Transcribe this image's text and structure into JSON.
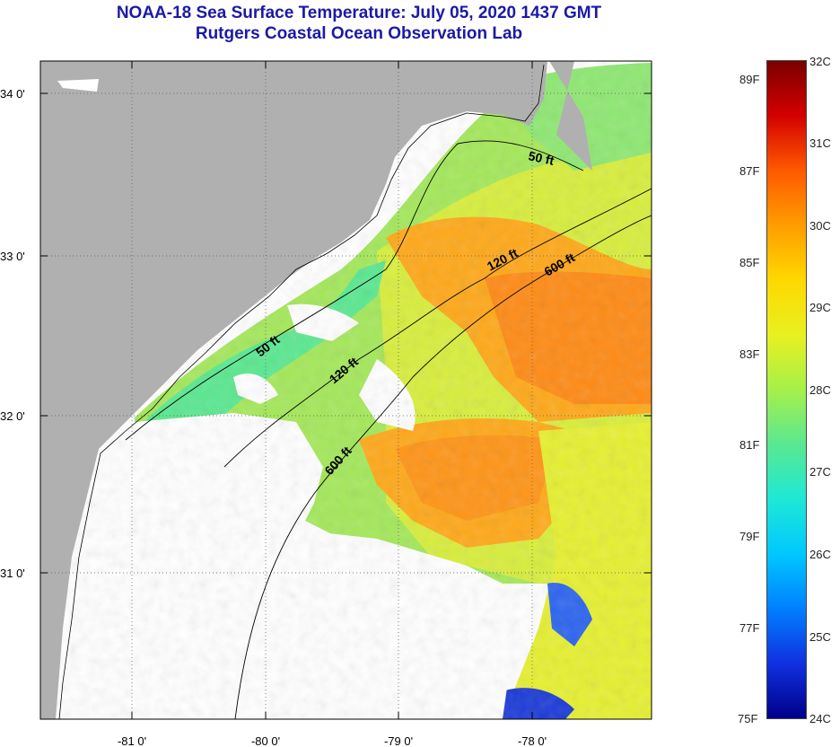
{
  "header": {
    "title": "NOAA-18 Sea Surface Temperature:  July 05, 2020 1437 GMT",
    "subtitle": "Rutgers Coastal Ocean Observation Lab"
  },
  "map": {
    "lat_ticks": [
      "34 0'",
      "33 0'",
      "32 0'",
      "31 0'"
    ],
    "lon_ticks": [
      "-81 0'",
      "-80 0'",
      "-79 0'",
      "-78 0'"
    ],
    "contours": [
      "50 ft",
      "50 ft",
      "120 ft",
      "120 ft",
      "600 ft",
      "600 ft"
    ],
    "colors": {
      "land": "#b0b0b0",
      "cloud": "#ffffff"
    }
  },
  "colorbar": {
    "celsius": [
      "32C",
      "31C",
      "30C",
      "29C",
      "28C",
      "27C",
      "26C",
      "25C",
      "24C"
    ],
    "fahrenheit": [
      "89F",
      "87F",
      "85F",
      "83F",
      "81F",
      "79F",
      "77F",
      "75F"
    ],
    "colors": [
      "#7a0000",
      "#d40000",
      "#ff5a00",
      "#ff9d00",
      "#ffd800",
      "#e8f020",
      "#a6f04a",
      "#5ae890",
      "#1ee8d6",
      "#00c8ff",
      "#0080ff",
      "#1030e0",
      "#00008a"
    ]
  }
}
